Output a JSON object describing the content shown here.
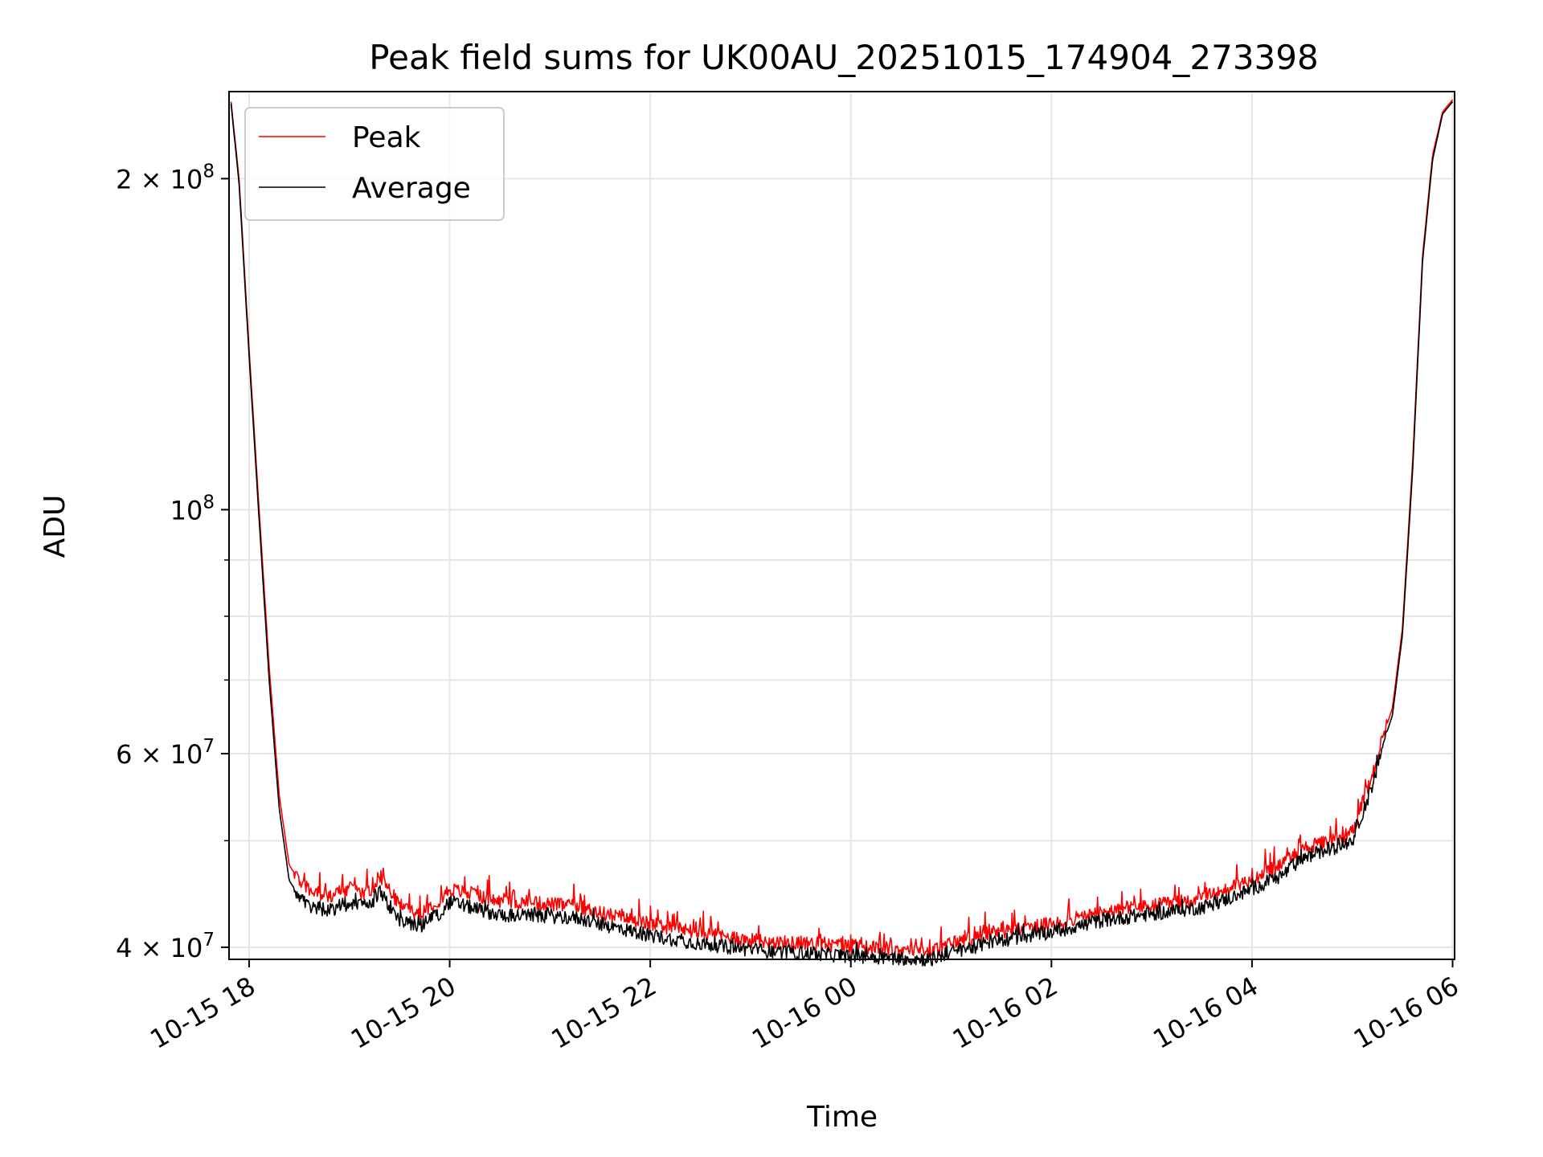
{
  "chart_data": {
    "type": "line",
    "title": "Peak field sums for UK00AU_20251015_174904_273398",
    "xlabel": "Time",
    "ylabel": "ADU",
    "yscale": "log",
    "xlim": [
      17.8,
      30.02
    ],
    "ylim": [
      39000000,
      240000000
    ],
    "grid": true,
    "legend_position": "top-left",
    "x_ticks": [
      {
        "value": 18,
        "label": "10-15 18"
      },
      {
        "value": 20,
        "label": "10-15 20"
      },
      {
        "value": 22,
        "label": "10-15 22"
      },
      {
        "value": 24,
        "label": "10-16 00"
      },
      {
        "value": 26,
        "label": "10-16 02"
      },
      {
        "value": 28,
        "label": "10-16 04"
      },
      {
        "value": 30,
        "label": "10-16 06"
      }
    ],
    "y_ticks": [
      {
        "value": 40000000,
        "base": "4 × 10",
        "exp": "7"
      },
      {
        "value": 60000000,
        "base": "6 × 10",
        "exp": "7"
      },
      {
        "value": 100000000,
        "base": "10",
        "exp": "8"
      },
      {
        "value": 200000000,
        "base": "2 × 10",
        "exp": "8"
      }
    ],
    "y_minor_ticks": [
      50000000,
      70000000,
      80000000,
      90000000
    ],
    "series": [
      {
        "name": "Peak",
        "color": "#ff0000",
        "x": [
          17.82,
          17.9,
          18.0,
          18.1,
          18.2,
          18.3,
          18.4,
          18.5,
          18.6,
          18.8,
          19.0,
          19.2,
          19.3,
          19.5,
          19.7,
          19.9,
          20.0,
          20.5,
          21.0,
          21.3,
          21.5,
          22.0,
          22.5,
          23.0,
          23.5,
          24.0,
          24.5,
          24.8,
          25.0,
          25.5,
          26.0,
          26.5,
          27.0,
          27.5,
          27.8,
          28.0,
          28.3,
          28.5,
          28.8,
          29.0,
          29.1,
          29.2,
          29.3,
          29.4,
          29.5,
          29.6,
          29.7,
          29.8,
          29.9,
          30.0
        ],
        "y": [
          235000000,
          200000000,
          140000000,
          100000000,
          72000000,
          55000000,
          47500000,
          46000000,
          45000000,
          44500000,
          45200000,
          44800000,
          46500000,
          43700000,
          43000000,
          44200000,
          45200000,
          44000000,
          43800000,
          43500000,
          43000000,
          42000000,
          41200000,
          40600000,
          40300000,
          40100000,
          39800000,
          39600000,
          40400000,
          41300000,
          42000000,
          43000000,
          43600000,
          44300000,
          45300000,
          46200000,
          47500000,
          49200000,
          50000000,
          51000000,
          54000000,
          57000000,
          62000000,
          66000000,
          78000000,
          110000000,
          170000000,
          210000000,
          230000000,
          236000000
        ]
      },
      {
        "name": "Average",
        "color": "#000000",
        "x": [
          17.82,
          17.9,
          18.0,
          18.1,
          18.2,
          18.3,
          18.4,
          18.5,
          18.6,
          18.8,
          19.0,
          19.2,
          19.3,
          19.5,
          19.7,
          19.9,
          20.0,
          20.5,
          21.0,
          21.3,
          21.5,
          22.0,
          22.5,
          23.0,
          23.5,
          24.0,
          24.5,
          24.8,
          25.0,
          25.5,
          26.0,
          26.5,
          27.0,
          27.5,
          27.8,
          28.0,
          28.3,
          28.5,
          28.8,
          29.0,
          29.1,
          29.2,
          29.3,
          29.4,
          29.5,
          29.6,
          29.7,
          29.8,
          29.9,
          30.0
        ],
        "y": [
          234000000,
          198000000,
          138000000,
          98000000,
          70000000,
          53500000,
          46000000,
          44500000,
          43500000,
          43200000,
          43900000,
          43500000,
          45000000,
          42300000,
          41800000,
          43000000,
          44000000,
          42800000,
          42700000,
          42500000,
          42000000,
          41000000,
          40300000,
          39800000,
          39500000,
          39300000,
          39100000,
          39000000,
          39600000,
          40600000,
          41300000,
          42300000,
          42900000,
          43500000,
          44400000,
          45200000,
          46500000,
          48200000,
          49200000,
          50000000,
          53000000,
          56000000,
          61000000,
          65000000,
          77000000,
          108000000,
          168000000,
          208000000,
          229000000,
          235000000
        ]
      }
    ]
  }
}
